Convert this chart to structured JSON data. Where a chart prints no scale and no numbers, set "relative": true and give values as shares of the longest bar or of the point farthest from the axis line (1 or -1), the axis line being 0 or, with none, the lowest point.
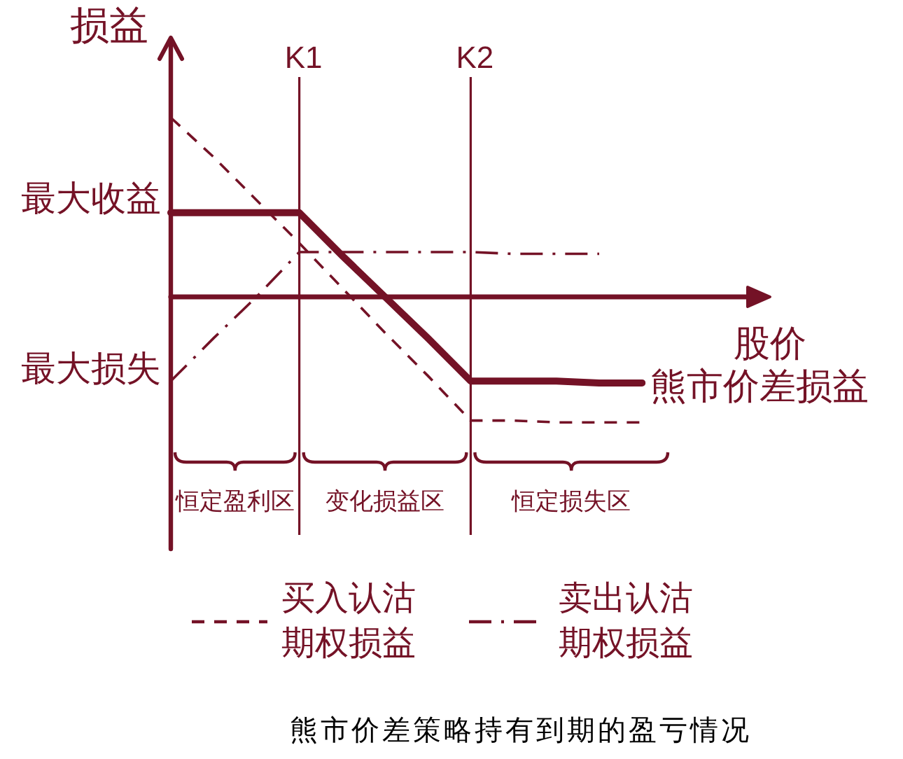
{
  "chart_data": {
    "type": "line",
    "title": "熊市价差策略持有到期的盈亏情况",
    "xlabel": "股价",
    "ylabel": "损益",
    "relative": true,
    "grid": "x",
    "categories": [
      null,
      null,
      null,
      "K1",
      null,
      null,
      null,
      "K2",
      null,
      null,
      null,
      null
    ],
    "series": [
      {
        "name": "熊市价差损益",
        "color": "#741226",
        "line_style": "solid",
        "values": [
          0.47,
          0.47,
          0.47,
          0.47,
          0.23,
          0,
          -0.23,
          -0.47,
          -0.47,
          -0.47,
          -0.48,
          -0.48
        ]
      },
      {
        "name": "买入认沽期权损益",
        "color": "#741226",
        "line_style": "dashed",
        "values": [
          1,
          0.78,
          0.54,
          0.3,
          0.05,
          -0.2,
          -0.44,
          -0.69,
          -0.69,
          -0.7,
          -0.7,
          -0.7
        ]
      },
      {
        "name": "卖出认沽期权损益",
        "color": "#741226",
        "line_style": "dashdot",
        "values": [
          -0.47,
          -0.23,
          0,
          0.25,
          0.25,
          0.25,
          0.25,
          0.25,
          0.24,
          0.24,
          0.24,
          null
        ]
      }
    ],
    "ref_lines": [
      {
        "axis": "y",
        "value": 0,
        "color": "#741226"
      }
    ],
    "annotations": [
      "最大收益",
      "最大损失",
      "恒定盈利区",
      "变化损益区",
      "恒定损失区"
    ],
    "legend": "bottom"
  }
}
